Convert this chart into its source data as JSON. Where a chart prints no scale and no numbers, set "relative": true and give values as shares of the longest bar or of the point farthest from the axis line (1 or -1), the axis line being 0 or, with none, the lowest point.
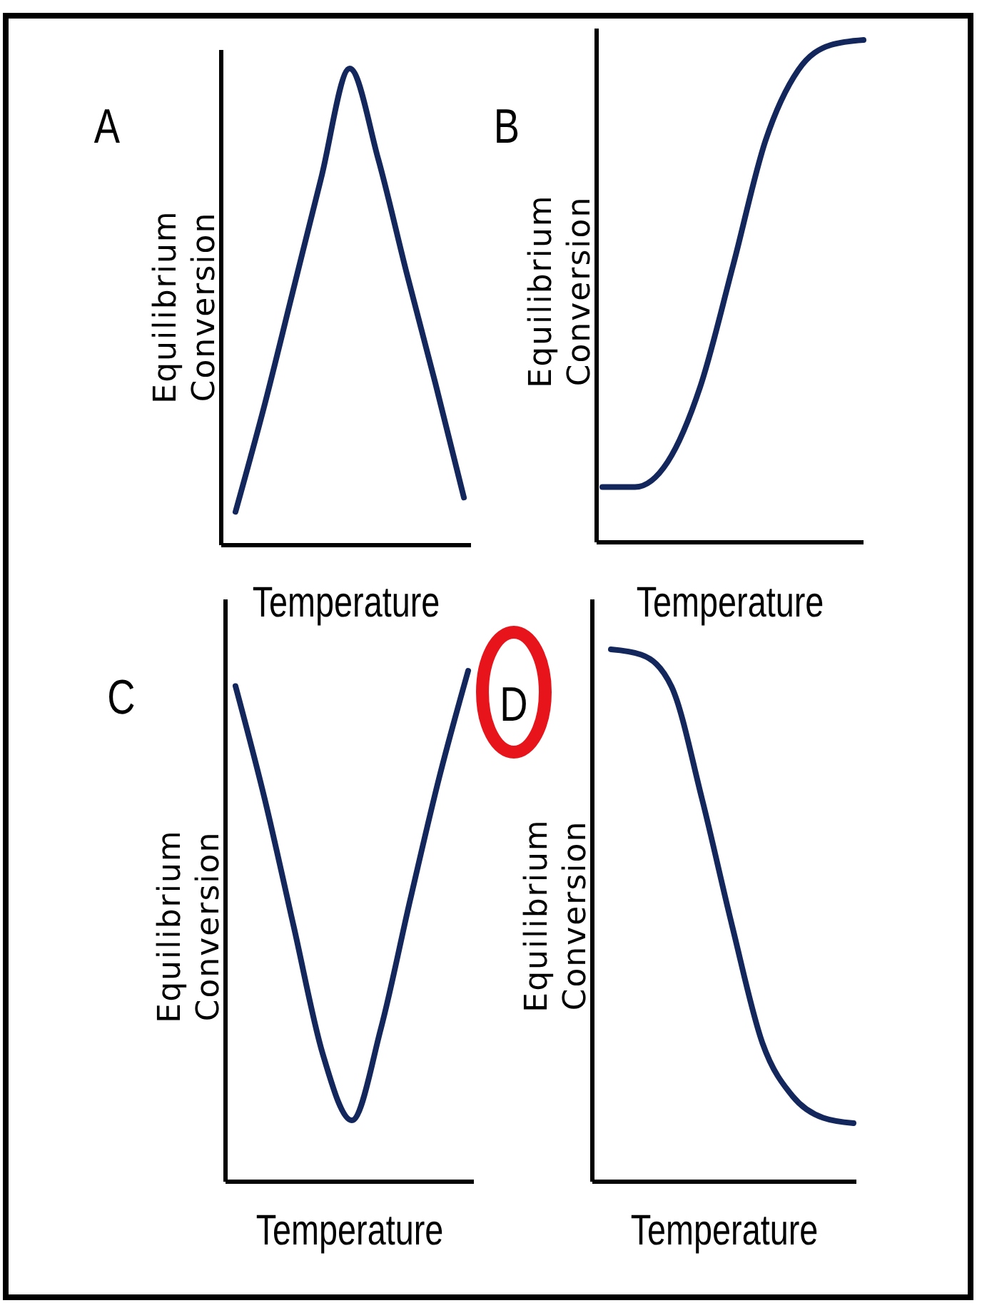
{
  "chart_data": [
    {
      "type": "line",
      "title": "A",
      "xlabel": "Temperature",
      "ylabel": "Equilibrium\nConversion",
      "relative": true,
      "categories": [
        null,
        null,
        null,
        null,
        null,
        null,
        null,
        null,
        null
      ],
      "series": [
        {
          "color": "#14275c",
          "values": [
            0.07,
            0.29,
            0.53,
            0.77,
            1,
            0.81,
            0.57,
            0.34,
            0.1
          ]
        }
      ],
      "marker": "none",
      "line_style": "solid"
    },
    {
      "type": "line",
      "title": "B",
      "xlabel": "Temperature",
      "ylabel": "Equilibrium\nConversion",
      "relative": true,
      "categories": [
        null,
        null,
        null,
        null,
        null,
        null,
        null,
        null,
        null
      ],
      "series": [
        {
          "color": "#14275c",
          "values": [
            0.11,
            0.11,
            0.16,
            0.31,
            0.55,
            0.8,
            0.94,
            0.99,
            1
          ]
        }
      ],
      "marker": "none",
      "line_style": "solid"
    },
    {
      "type": "line",
      "title": "C",
      "xlabel": "Temperature",
      "ylabel": "Equilibrium\nConversion",
      "relative": true,
      "categories": [
        null,
        null,
        null,
        null,
        null,
        null,
        null,
        null,
        null
      ],
      "series": [
        {
          "color": "#14275c",
          "values": [
            0.97,
            0.75,
            0.5,
            0.25,
            0.12,
            0.3,
            0.55,
            0.79,
            1
          ]
        }
      ],
      "marker": "none",
      "line_style": "solid"
    },
    {
      "type": "line",
      "title": "D",
      "xlabel": "Temperature",
      "ylabel": "Equilibrium\nConversion",
      "relative": true,
      "categories": [
        null,
        null,
        null,
        null,
        null,
        null,
        null,
        null,
        null
      ],
      "series": [
        {
          "color": "#14275c",
          "values": [
            1,
            0.99,
            0.93,
            0.72,
            0.48,
            0.26,
            0.16,
            0.12,
            0.11
          ]
        }
      ],
      "marker": "none",
      "line_style": "solid"
    }
  ]
}
